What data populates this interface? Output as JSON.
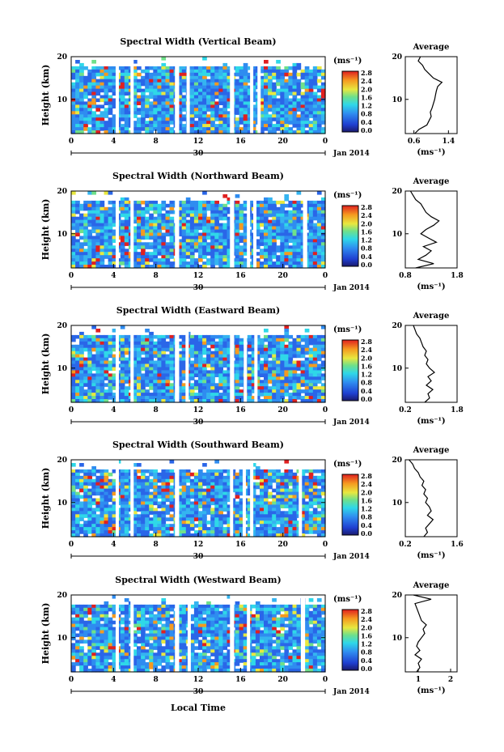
{
  "figure": {
    "x_axis_title": "Local Time",
    "date_label": "Jan 2014",
    "colorbar_unit": "(ms⁻¹)",
    "avg_title": "Average",
    "avg_unit": "(ms⁻¹)",
    "height_axis_label": "Height (km)"
  },
  "chart_data": [
    {
      "type": "heatmap",
      "title": "Spectral Width (Vertical Beam)",
      "ylabel": "Height (km)",
      "xlabel": "Local Time",
      "x_ticks": [
        "0",
        "4",
        "8",
        "12",
        "16",
        "20",
        "0"
      ],
      "x_range": [
        0,
        24
      ],
      "y_ticks": [
        "20",
        "10"
      ],
      "y_range": [
        2,
        20
      ],
      "day_label": "30",
      "date_label": "Jan 2014",
      "colorbar": {
        "unit": "(ms⁻¹)",
        "ticks": [
          "2.8",
          "2.4",
          "2.0",
          "1.6",
          "1.2",
          "0.8",
          "0.4",
          "0.0"
        ],
        "min": 0.0,
        "max": 2.8
      },
      "gaps_hours": [
        [
          4.2,
          4.5
        ],
        [
          5.6,
          5.9
        ],
        [
          9.8,
          10.2
        ],
        [
          10.9,
          11.2
        ],
        [
          15.0,
          15.4
        ],
        [
          16.9,
          17.2
        ],
        [
          17.6,
          17.8
        ]
      ],
      "average": {
        "title": "Average",
        "xlabel": "(ms⁻¹)",
        "x_ticks": [
          "0.6",
          "1.4"
        ],
        "x_range": [
          0.4,
          1.6
        ],
        "y_ticks": [
          "20",
          "10"
        ],
        "profile_heights": [
          2,
          3,
          4,
          5,
          6,
          7,
          8,
          9,
          10,
          11,
          12,
          13,
          14,
          15,
          16,
          17,
          18,
          19,
          20
        ],
        "profile_values": [
          0.62,
          0.72,
          0.9,
          0.95,
          1.0,
          0.98,
          1.02,
          1.05,
          1.08,
          1.1,
          1.12,
          1.15,
          1.25,
          1.05,
          0.95,
          0.85,
          0.8,
          0.7,
          0.75
        ]
      }
    },
    {
      "type": "heatmap",
      "title": "Spectral Width (Northward Beam)",
      "ylabel": "Height (km)",
      "xlabel": "Local Time",
      "x_ticks": [
        "0",
        "4",
        "8",
        "12",
        "16",
        "20",
        "0"
      ],
      "x_range": [
        0,
        24
      ],
      "y_ticks": [
        "20",
        "10"
      ],
      "y_range": [
        2,
        20
      ],
      "day_label": "30",
      "date_label": "Jan 2014",
      "colorbar": {
        "unit": "(ms⁻¹)",
        "ticks": [
          "2.8",
          "2.4",
          "2.0",
          "1.6",
          "1.2",
          "0.8",
          "0.4",
          "0.0"
        ],
        "min": 0.0,
        "max": 2.8
      },
      "gaps_hours": [
        [
          4.2,
          4.5
        ],
        [
          5.6,
          5.9
        ],
        [
          9.8,
          10.2
        ],
        [
          15.0,
          15.4
        ],
        [
          16.6,
          16.9
        ],
        [
          17.2,
          17.5
        ],
        [
          21.9,
          22.3
        ]
      ],
      "average": {
        "title": "Average",
        "xlabel": "(ms⁻¹)",
        "x_ticks": [
          "0.8",
          "1.8"
        ],
        "x_range": [
          0.8,
          1.8
        ],
        "y_ticks": [
          "20",
          "10"
        ],
        "profile_heights": [
          2,
          3,
          4,
          5,
          6,
          7,
          8,
          9,
          10,
          11,
          12,
          13,
          14,
          15,
          16,
          17,
          18,
          19,
          20
        ],
        "profile_values": [
          1.0,
          1.35,
          1.05,
          1.2,
          1.3,
          1.15,
          1.4,
          1.25,
          1.1,
          1.2,
          1.35,
          1.45,
          1.3,
          1.2,
          1.15,
          1.1,
          1.0,
          0.95,
          0.9
        ]
      }
    },
    {
      "type": "heatmap",
      "title": "Spectral Width (Eastward Beam)",
      "ylabel": "Height (km)",
      "xlabel": "Local Time",
      "x_ticks": [
        "0",
        "4",
        "8",
        "12",
        "16",
        "20",
        "0"
      ],
      "x_range": [
        0,
        24
      ],
      "y_ticks": [
        "20",
        "10"
      ],
      "y_range": [
        2,
        20
      ],
      "day_label": "30",
      "date_label": "Jan 2014",
      "colorbar": {
        "unit": "(ms⁻¹)",
        "ticks": [
          "2.8",
          "2.4",
          "2.0",
          "1.6",
          "1.2",
          "0.8",
          "0.4",
          "0.0"
        ],
        "min": 0.0,
        "max": 2.8
      },
      "gaps_hours": [
        [
          4.2,
          4.5
        ],
        [
          5.6,
          5.9
        ],
        [
          9.8,
          10.2
        ],
        [
          10.8,
          11.0
        ],
        [
          15.0,
          15.4
        ],
        [
          16.3,
          16.6
        ],
        [
          17.3,
          17.6
        ]
      ],
      "average": {
        "title": "Average",
        "xlabel": "(ms⁻¹)",
        "x_ticks": [
          "0.2",
          "1.8"
        ],
        "x_range": [
          0.2,
          1.8
        ],
        "y_ticks": [
          "20",
          "10"
        ],
        "profile_heights": [
          2,
          3,
          4,
          5,
          6,
          7,
          8,
          9,
          10,
          11,
          12,
          13,
          14,
          15,
          16,
          17,
          18,
          19,
          20
        ],
        "profile_values": [
          0.8,
          0.95,
          0.9,
          1.05,
          0.85,
          1.0,
          0.9,
          1.1,
          0.95,
          0.85,
          0.9,
          0.8,
          0.85,
          0.75,
          0.7,
          0.65,
          0.55,
          0.5,
          0.45
        ]
      }
    },
    {
      "type": "heatmap",
      "title": "Spectral Width (Southward Beam)",
      "ylabel": "Height (km)",
      "xlabel": "Local Time",
      "x_ticks": [
        "0",
        "4",
        "8",
        "12",
        "16",
        "20",
        "0"
      ],
      "x_range": [
        0,
        24
      ],
      "y_ticks": [
        "20",
        "10"
      ],
      "y_range": [
        2,
        20
      ],
      "day_label": "30",
      "date_label": "Jan 2014",
      "colorbar": {
        "unit": "(ms⁻¹)",
        "ticks": [
          "2.8",
          "2.4",
          "2.0",
          "1.6",
          "1.2",
          "0.8",
          "0.4",
          "0.0"
        ],
        "min": 0.0,
        "max": 2.8
      },
      "gaps_hours": [
        [
          4.2,
          4.5
        ],
        [
          5.6,
          5.9
        ],
        [
          9.8,
          10.2
        ],
        [
          15.0,
          15.3
        ],
        [
          16.2,
          16.5
        ],
        [
          16.9,
          17.2
        ],
        [
          21.5,
          21.8
        ]
      ],
      "average": {
        "title": "Average",
        "xlabel": "(ms⁻¹)",
        "x_ticks": [
          "0.2",
          "1.6"
        ],
        "x_range": [
          0.2,
          1.6
        ],
        "y_ticks": [
          "20",
          "10"
        ],
        "profile_heights": [
          2,
          3,
          4,
          5,
          6,
          7,
          8,
          9,
          10,
          11,
          12,
          13,
          14,
          15,
          16,
          17,
          18,
          19,
          20
        ],
        "profile_values": [
          0.7,
          0.8,
          0.75,
          0.85,
          0.95,
          0.8,
          0.9,
          0.85,
          0.75,
          0.8,
          0.7,
          0.75,
          0.65,
          0.7,
          0.6,
          0.55,
          0.45,
          0.4,
          0.3
        ]
      }
    },
    {
      "type": "heatmap",
      "title": "Spectral Width (Westward Beam)",
      "ylabel": "Height (km)",
      "xlabel": "Local Time",
      "x_ticks": [
        "0",
        "4",
        "8",
        "12",
        "16",
        "20",
        "0"
      ],
      "x_range": [
        0,
        24
      ],
      "y_ticks": [
        "20",
        "10"
      ],
      "y_range": [
        2,
        20
      ],
      "day_label": "30",
      "date_label": "Jan 2014",
      "colorbar": {
        "unit": "(ms⁻¹)",
        "ticks": [
          "2.8",
          "2.4",
          "2.0",
          "1.6",
          "1.2",
          "0.8",
          "0.4",
          "0.0"
        ],
        "min": 0.0,
        "max": 2.8
      },
      "gaps_hours": [
        [
          4.2,
          4.5
        ],
        [
          5.6,
          5.9
        ],
        [
          9.8,
          10.2
        ],
        [
          11.0,
          11.3
        ],
        [
          15.0,
          15.4
        ],
        [
          16.6,
          16.9
        ],
        [
          21.7,
          22.1
        ]
      ],
      "average": {
        "title": "Average",
        "xlabel": "(ms⁻¹)",
        "x_ticks": [
          "1",
          "2"
        ],
        "x_range": [
          0.6,
          2.2
        ],
        "y_ticks": [
          "20",
          "10"
        ],
        "profile_heights": [
          2,
          3,
          4,
          5,
          6,
          7,
          8,
          9,
          10,
          11,
          12,
          13,
          14,
          15,
          16,
          17,
          18,
          19,
          20
        ],
        "profile_values": [
          0.95,
          1.05,
          1.0,
          1.1,
          0.9,
          1.05,
          0.95,
          1.0,
          1.1,
          1.2,
          1.15,
          1.25,
          1.1,
          1.05,
          1.0,
          0.95,
          0.9,
          1.4,
          0.85
        ]
      }
    }
  ]
}
